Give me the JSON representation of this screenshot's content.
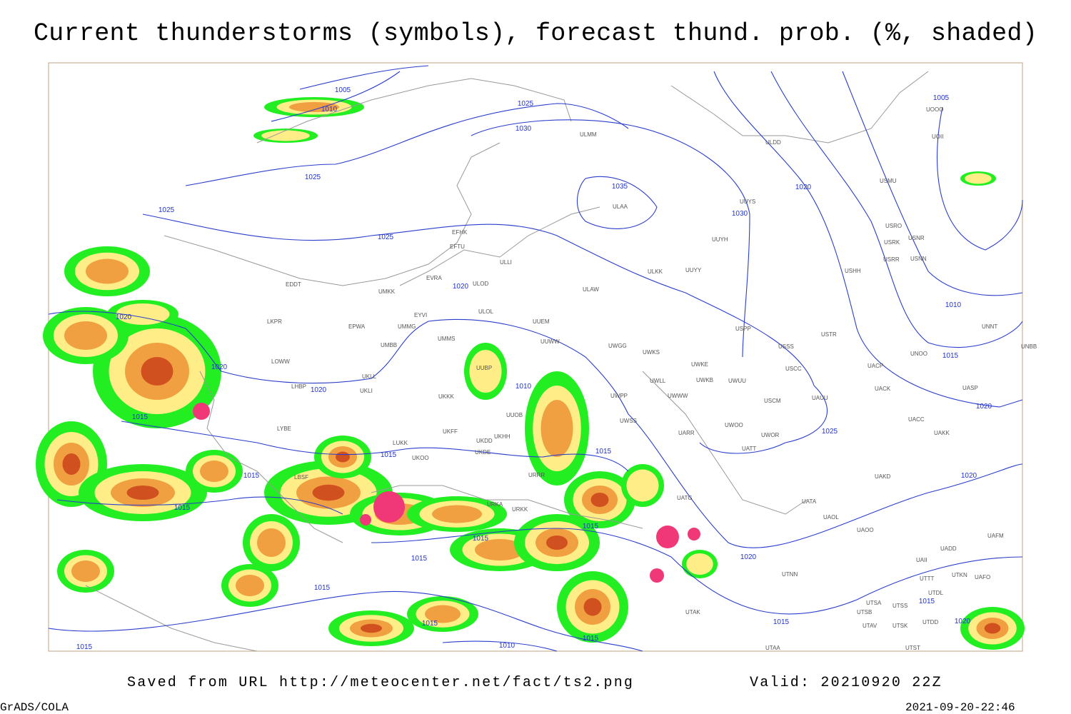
{
  "header": {
    "title": "Current thunderstorms (symbols), forecast thund. prob. (%, shaded)"
  },
  "footer": {
    "source": "Saved from URL http://meteocenter.net/fact/ts2.png",
    "valid": "Valid: 20210920 22Z",
    "credit": "GrADS/COLA",
    "timestamp": "2021-09-20-22:46"
  },
  "isobar_labels": [
    1005,
    1010,
    1025,
    1030,
    1025,
    1025,
    1035,
    1030,
    1025,
    1020,
    1005,
    1010,
    1015,
    1020,
    1025,
    1020,
    1020,
    1020,
    1020,
    1015,
    1015,
    1015,
    1015,
    1010,
    1015,
    1015,
    1015,
    1015,
    1015,
    1015,
    1015,
    1010,
    1015,
    1020,
    1020,
    1015,
    1015,
    1020
  ],
  "stations": [
    "UOOO",
    "UOII",
    "ULDD",
    "ULMM",
    "ULAA",
    "USMU",
    "UUYS",
    "USRO",
    "USRK",
    "USNR",
    "USRR",
    "USNN",
    "UUYH",
    "USHH",
    "ULKK",
    "UUYY",
    "EFHK",
    "EFTU",
    "ULLI",
    "EVRA",
    "ULOD",
    "ULAW",
    "EDDT",
    "UMKK",
    "ULOL",
    "EYVI",
    "UUEM",
    "EPWA",
    "UMMG",
    "LKPR",
    "USPP",
    "USTR",
    "UMMS",
    "UUWW",
    "UNNT",
    "USSS",
    "UWGG",
    "UWKS",
    "UNOO",
    "UNBB",
    "LOWW",
    "UMBB",
    "UUBP",
    "UWKE",
    "USCC",
    "UACP",
    "UWKB",
    "UWUU",
    "UWLL",
    "UKLL",
    "UKLI",
    "LHBP",
    "UWWW",
    "UWPP",
    "UACK",
    "UASP",
    "UKKK",
    "USCM",
    "UAUU",
    "UUOB",
    "UACC",
    "UWSS",
    "LYBE",
    "UWOO",
    "UKFF",
    "UKOO",
    "UKHH",
    "UARR",
    "UATT",
    "UWOR",
    "UAKK",
    "LUKK",
    "UKDD",
    "UKDE",
    "UAKD",
    "URRR",
    "LBSF",
    "UATG",
    "UATA",
    "UAOL",
    "UADD",
    "UAFM",
    "UAOO",
    "URKA",
    "URKK",
    "UTNN",
    "UAII",
    "UTTT",
    "UTKN",
    "UAFO",
    "UTDL",
    "UTSS",
    "UTSB",
    "UTAK",
    "UTSA",
    "UTAV",
    "UTSK",
    "UTDD",
    "UTST",
    "UTAA"
  ]
}
